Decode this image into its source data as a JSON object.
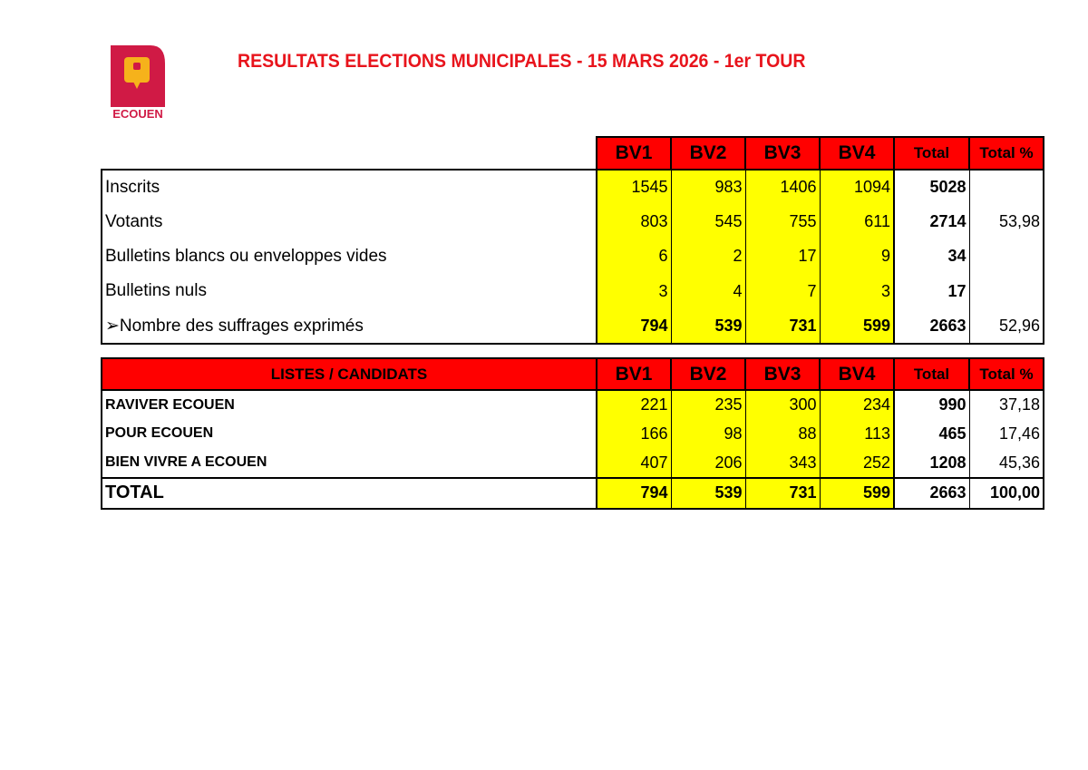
{
  "logo": {
    "text": "ECOUEN",
    "colors": {
      "red": "#d01a45",
      "yellow": "#f6b21b"
    }
  },
  "title": "RESULTATS ELECTIONS MUNICIPALES - 15 MARS 2026 - 1er TOUR",
  "columns": [
    "BV1",
    "BV2",
    "BV3",
    "BV4",
    "Total",
    "Total %"
  ],
  "participation": [
    {
      "label": "Inscrits",
      "values": [
        "1545",
        "983",
        "1406",
        "1094"
      ],
      "total": "5028",
      "pct": ""
    },
    {
      "label": "Votants",
      "values": [
        "803",
        "545",
        "755",
        "611"
      ],
      "total": "2714",
      "pct": "53,98"
    },
    {
      "label": "Bulletins blancs ou enveloppes vides",
      "values": [
        "6",
        "2",
        "17",
        "9"
      ],
      "total": "34",
      "pct": ""
    },
    {
      "label": "Bulletins nuls",
      "values": [
        "3",
        "4",
        "7",
        "3"
      ],
      "total": "17",
      "pct": ""
    },
    {
      "label": "➢Nombre des suffrages exprimés",
      "values": [
        "794",
        "539",
        "731",
        "599"
      ],
      "total": "2663",
      "pct": "52,96"
    }
  ],
  "lists_header": "LISTES / CANDIDATS",
  "lists": [
    {
      "label": "RAVIVER ECOUEN",
      "values": [
        "221",
        "235",
        "300",
        "234"
      ],
      "total": "990",
      "pct": "37,18"
    },
    {
      "label": "POUR ECOUEN",
      "values": [
        "166",
        "98",
        "88",
        "113"
      ],
      "total": "465",
      "pct": "17,46"
    },
    {
      "label": "BIEN VIVRE A ECOUEN",
      "values": [
        "407",
        "206",
        "343",
        "252"
      ],
      "total": "1208",
      "pct": "45,36"
    }
  ],
  "total_row": {
    "label": "TOTAL",
    "values": [
      "794",
      "539",
      "731",
      "599"
    ],
    "total": "2663",
    "pct": "100,00"
  },
  "colors": {
    "header": "#ff0000",
    "cells": "#ffff00",
    "title": "#e8141c"
  }
}
